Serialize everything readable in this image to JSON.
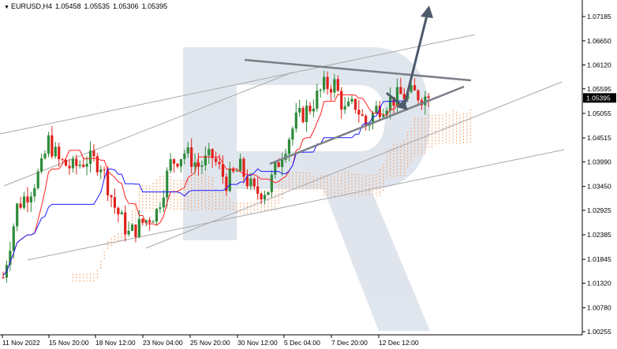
{
  "header": {
    "symbol": "EURUSD,H4",
    "open": "1.05458",
    "high": "1.05535",
    "low": "1.05306",
    "close": "1.05395"
  },
  "colors": {
    "bull": "#2e8b3a",
    "bear": "#e0201b",
    "tenkan": "#ff2020",
    "kijun": "#1a1aff",
    "kumo": "#f4a36a",
    "trendline": "#a8a8a8",
    "pattern": "#7a7f87",
    "arrow": "#4d5a6b",
    "watermark": "#d6dde8",
    "grid": "#e9e9e9"
  },
  "chart_data": {
    "type": "candlestick",
    "ylim": [
      1.00255,
      1.07185
    ],
    "price_ticks": [
      "1.07185",
      "1.06650",
      "1.06120",
      "1.05595",
      "1.05055",
      "1.04515",
      "1.03990",
      "1.03450",
      "1.02925",
      "1.02385",
      "1.01845",
      "1.01320",
      "1.00780",
      "1.00255"
    ],
    "time_ticks": [
      "11 Nov 2022",
      "15 Nov 20:00",
      "18 Nov 12:00",
      "23 Nov 04:00",
      "25 Nov 20:00",
      "30 Nov 12:00",
      "5 Dec 04:00",
      "7 Dec 20:00",
      "12 Dec 12:00"
    ],
    "current_price": "1.05395",
    "candles": [],
    "candle_count": 123
  }
}
